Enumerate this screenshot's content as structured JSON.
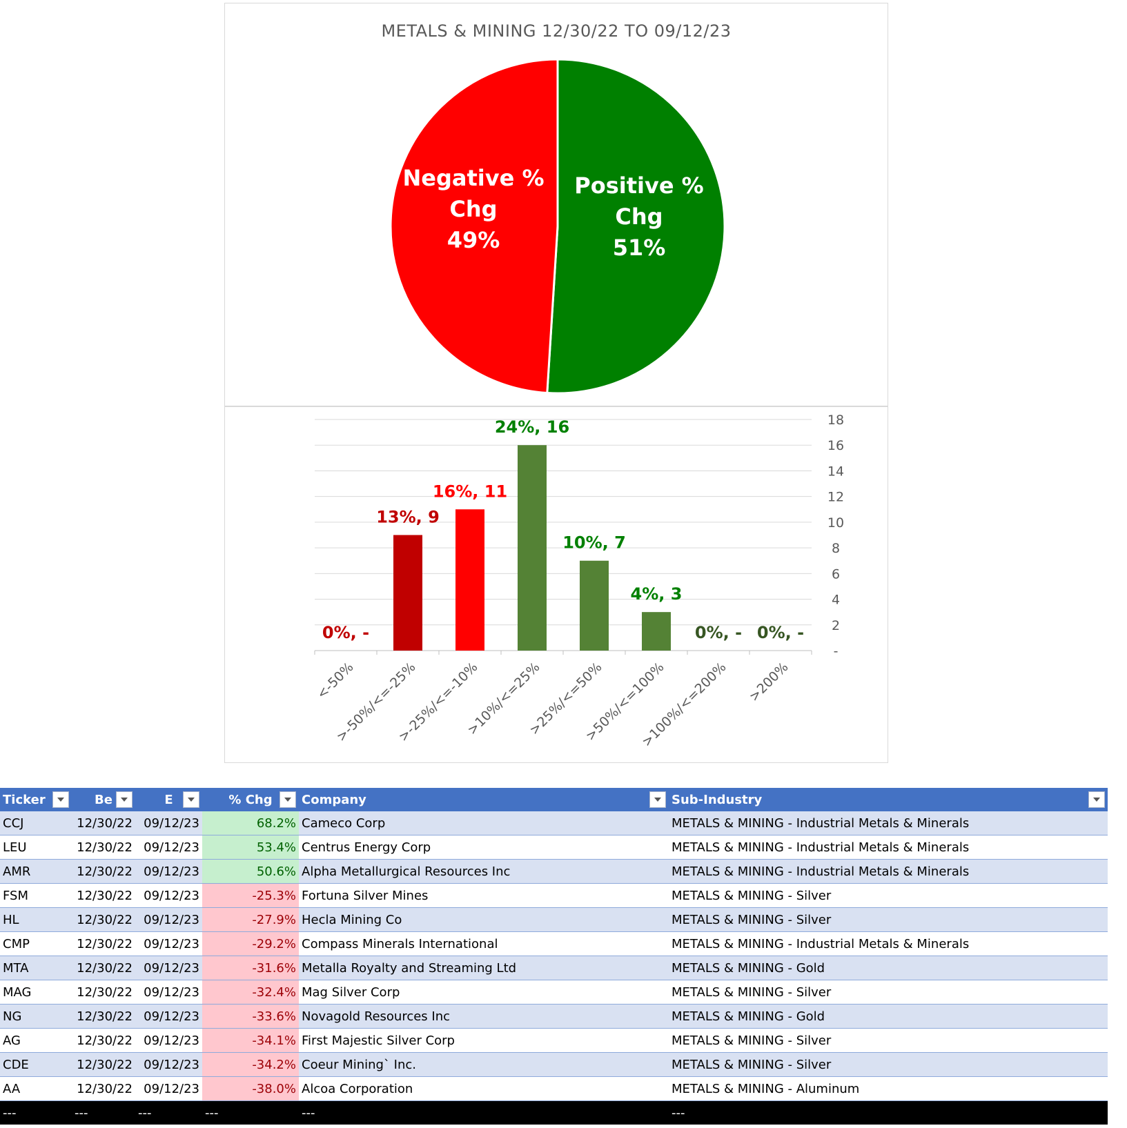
{
  "chart_data": [
    {
      "type": "pie",
      "title": "METALS & MINING 12/30/22 TO 09/12/23",
      "slices": [
        {
          "label_lines": [
            "Positive %",
            "Chg",
            "51%"
          ],
          "value": 51,
          "color": "#008000"
        },
        {
          "label_lines": [
            "Negative %",
            "Chg",
            "49%"
          ],
          "value": 49,
          "color": "#ff0000"
        }
      ]
    },
    {
      "type": "bar",
      "categories": [
        "<-50%",
        ">-50%/<=-25%",
        ">-25%/<=-10%",
        ">10%/<=25%",
        ">25%/<=50%",
        ">50%/<=100%",
        ">100%/<=200%",
        ">200%"
      ],
      "values": [
        0,
        9,
        11,
        16,
        7,
        3,
        0,
        0
      ],
      "data_labels": [
        "0%,  -",
        "13%,  9",
        "16%,  11",
        "24%,  16",
        "10%,  7",
        "4%,  3",
        "0%,  -",
        "0%,  -"
      ],
      "bar_colors": [
        "#c00000",
        "#c00000",
        "#ff0000",
        "#548235",
        "#548235",
        "#548235",
        "#548235",
        "#548235"
      ],
      "label_colors": [
        "#c00000",
        "#c00000",
        "#ff0000",
        "#008000",
        "#008000",
        "#008000",
        "#375623",
        "#375623"
      ],
      "y_ticks": [
        "-",
        "2",
        "4",
        "6",
        "8",
        "10",
        "12",
        "14",
        "16",
        "18"
      ],
      "ylim": [
        0,
        18
      ],
      "y_axis_side": "right",
      "grid": true
    }
  ],
  "table": {
    "headers": [
      "Ticker",
      "Be",
      "E",
      "% Chg",
      "Company",
      "Sub-Industry"
    ],
    "rows": [
      [
        "CCJ",
        "12/30/22",
        "09/12/23",
        "68.2%",
        "Cameco Corp",
        "METALS & MINING - Industrial Metals & Minerals"
      ],
      [
        "LEU",
        "12/30/22",
        "09/12/23",
        "53.4%",
        "Centrus Energy Corp",
        "METALS & MINING - Industrial Metals & Minerals"
      ],
      [
        "AMR",
        "12/30/22",
        "09/12/23",
        "50.6%",
        "Alpha Metallurgical Resources Inc",
        "METALS & MINING - Industrial Metals & Minerals"
      ],
      [
        "FSM",
        "12/30/22",
        "09/12/23",
        "-25.3%",
        "Fortuna Silver Mines",
        "METALS & MINING - Silver"
      ],
      [
        "HL",
        "12/30/22",
        "09/12/23",
        "-27.9%",
        "Hecla Mining Co",
        "METALS & MINING - Silver"
      ],
      [
        "CMP",
        "12/30/22",
        "09/12/23",
        "-29.2%",
        "Compass Minerals International",
        "METALS & MINING - Industrial Metals & Minerals"
      ],
      [
        "MTA",
        "12/30/22",
        "09/12/23",
        "-31.6%",
        "Metalla Royalty and Streaming Ltd",
        "METALS & MINING - Gold"
      ],
      [
        "MAG",
        "12/30/22",
        "09/12/23",
        "-32.4%",
        "Mag Silver Corp",
        "METALS & MINING - Silver"
      ],
      [
        "NG",
        "12/30/22",
        "09/12/23",
        "-33.6%",
        "Novagold Resources Inc",
        "METALS & MINING - Gold"
      ],
      [
        "AG",
        "12/30/22",
        "09/12/23",
        "-34.1%",
        "First Majestic Silver Corp",
        "METALS & MINING - Silver"
      ],
      [
        "CDE",
        "12/30/22",
        "09/12/23",
        "-34.2%",
        "Coeur Mining` Inc.",
        "METALS & MINING - Silver"
      ],
      [
        "AA",
        "12/30/22",
        "09/12/23",
        "-38.0%",
        "Alcoa Corporation",
        "METALS & MINING - Aluminum"
      ]
    ],
    "total_row": [
      "---",
      "---",
      "---",
      "---",
      "---",
      "---"
    ],
    "colors": {
      "header_bg": "#4472c4",
      "band": "#d9e1f2",
      "pos_fill": "#c6efce",
      "pos_text": "#006100",
      "neg_fill": "#ffc7ce",
      "neg_text": "#9c0006"
    }
  }
}
